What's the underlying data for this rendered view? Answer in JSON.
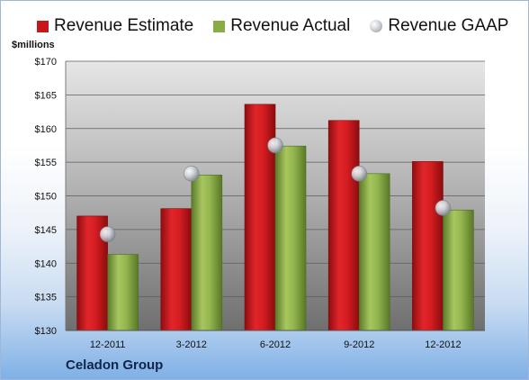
{
  "legend": {
    "items": [
      {
        "label": "Revenue Estimate",
        "color": "#c8171b",
        "kind": "bar"
      },
      {
        "label": "Revenue Actual",
        "color": "#8aac45",
        "kind": "bar"
      },
      {
        "label": "Revenue GAAP",
        "color": "#b9bdc3",
        "kind": "dot"
      }
    ]
  },
  "unit_label": "$millions",
  "footer": "Celadon Group",
  "chart_data": {
    "type": "bar",
    "categories": [
      "12-2011",
      "3-2012",
      "6-2012",
      "9-2012",
      "12-2012"
    ],
    "series": [
      {
        "name": "Revenue Estimate",
        "values": [
          147.0,
          148.1,
          163.6,
          161.2,
          155.1
        ],
        "color": "#c8171b"
      },
      {
        "name": "Revenue Actual",
        "values": [
          141.3,
          153.1,
          157.4,
          153.3,
          147.9
        ],
        "color": "#8aac45"
      },
      {
        "name": "Revenue GAAP",
        "values": [
          144.3,
          153.3,
          157.5,
          153.3,
          148.2
        ],
        "color": "#b9bdc3",
        "marker": "circle"
      }
    ],
    "y_ticks": [
      "$130",
      "$135",
      "$140",
      "$145",
      "$150",
      "$155",
      "$160",
      "$165",
      "$170"
    ],
    "ylim": [
      130,
      170
    ],
    "ylabel": "$millions",
    "xlabel": "",
    "grid": true,
    "legend_position": "top"
  }
}
